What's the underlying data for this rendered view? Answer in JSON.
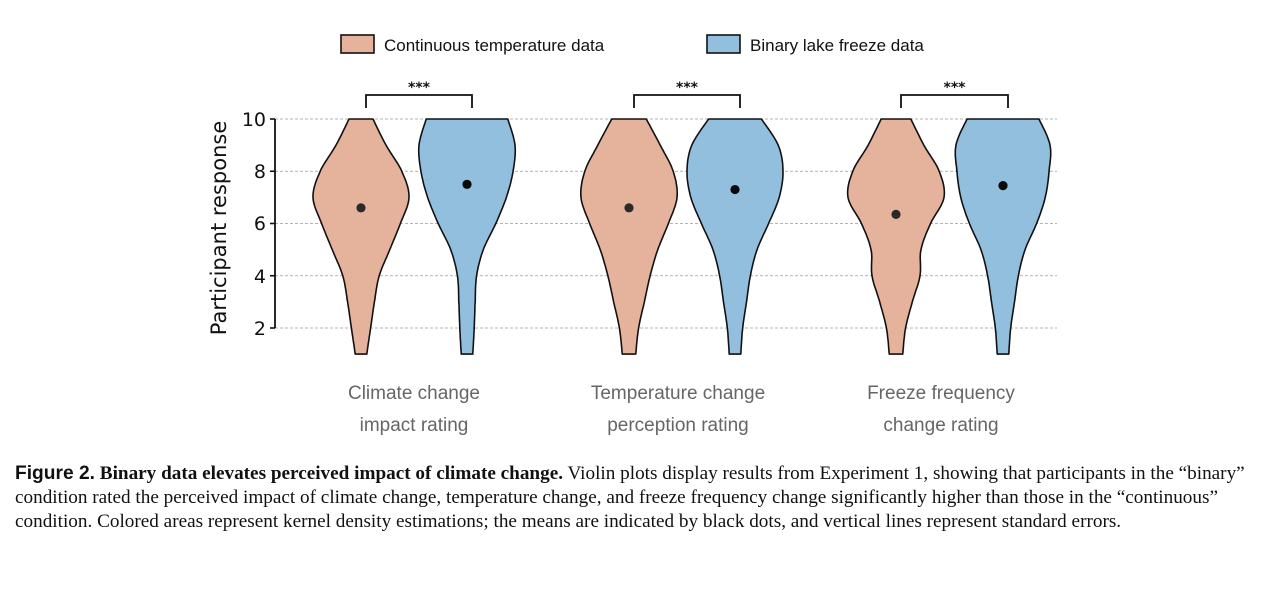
{
  "chart_data": {
    "type": "violin",
    "title": "",
    "xlabel": "",
    "ylabel": "Participant response",
    "ylim": [
      1,
      10
    ],
    "yticks": [
      2,
      4,
      6,
      8,
      10
    ],
    "grid": "horizontal-dashed",
    "legend_position": "top-center",
    "categories": [
      [
        "Climate change",
        "impact rating"
      ],
      [
        "Temperature change",
        "perception rating"
      ],
      [
        "Freeze frequency",
        "change rating"
      ]
    ],
    "series": [
      {
        "name": "Continuous temperature data",
        "color": "#E5B29C",
        "means": [
          6.6,
          6.6,
          6.35
        ],
        "sem": [
          0.15,
          0.15,
          0.15
        ],
        "range": [
          [
            1,
            10
          ],
          [
            1,
            10
          ],
          [
            1,
            10
          ]
        ],
        "density_profiles": [
          [
            [
              1,
              0.12
            ],
            [
              2,
              0.2
            ],
            [
              3,
              0.28
            ],
            [
              4,
              0.38
            ],
            [
              5,
              0.6
            ],
            [
              6,
              0.82
            ],
            [
              7,
              1.0
            ],
            [
              8,
              0.85
            ],
            [
              9,
              0.52
            ],
            [
              10,
              0.25
            ]
          ],
          [
            [
              1,
              0.14
            ],
            [
              2,
              0.2
            ],
            [
              3,
              0.32
            ],
            [
              4,
              0.44
            ],
            [
              5,
              0.6
            ],
            [
              6,
              0.82
            ],
            [
              7,
              1.0
            ],
            [
              8,
              0.92
            ],
            [
              9,
              0.65
            ],
            [
              10,
              0.36
            ]
          ],
          [
            [
              1,
              0.14
            ],
            [
              2,
              0.2
            ],
            [
              3,
              0.34
            ],
            [
              4,
              0.5
            ],
            [
              5,
              0.52
            ],
            [
              6,
              0.72
            ],
            [
              7,
              1.0
            ],
            [
              8,
              0.9
            ],
            [
              9,
              0.58
            ],
            [
              10,
              0.31
            ]
          ]
        ]
      },
      {
        "name": "Binary lake freeze data",
        "color": "#93BFDE",
        "means": [
          7.5,
          7.3,
          7.45
        ],
        "sem": [
          0.15,
          0.15,
          0.15
        ],
        "range": [
          [
            1,
            10
          ],
          [
            1,
            10
          ],
          [
            1,
            10
          ]
        ],
        "density_profiles": [
          [
            [
              1,
              0.12
            ],
            [
              2,
              0.15
            ],
            [
              3,
              0.17
            ],
            [
              4,
              0.2
            ],
            [
              5,
              0.34
            ],
            [
              6,
              0.6
            ],
            [
              7,
              0.82
            ],
            [
              8,
              0.96
            ],
            [
              9,
              1.0
            ],
            [
              10,
              0.85
            ]
          ],
          [
            [
              1,
              0.12
            ],
            [
              2,
              0.16
            ],
            [
              3,
              0.24
            ],
            [
              4,
              0.32
            ],
            [
              5,
              0.46
            ],
            [
              6,
              0.7
            ],
            [
              7,
              0.92
            ],
            [
              8,
              1.0
            ],
            [
              9,
              0.9
            ],
            [
              10,
              0.55
            ]
          ],
          [
            [
              1,
              0.12
            ],
            [
              2,
              0.16
            ],
            [
              3,
              0.24
            ],
            [
              4,
              0.32
            ],
            [
              5,
              0.46
            ],
            [
              6,
              0.7
            ],
            [
              7,
              0.88
            ],
            [
              8,
              0.96
            ],
            [
              9,
              0.98
            ],
            [
              10,
              0.75
            ]
          ]
        ]
      }
    ],
    "significance": [
      "***",
      "***",
      "***"
    ]
  },
  "caption": {
    "figure_number": "Figure 2.",
    "title": "Binary data elevates perceived impact of climate change.",
    "body": "Violin plots display results from Experiment 1, showing that participants in the “binary” condition rated the perceived impact of climate change, temperature change, and freeze frequency change significantly higher than those in the “continuous” condition. Colored areas represent kernel density estimations; the means are indicated by black dots, and vertical lines represent standard errors."
  }
}
